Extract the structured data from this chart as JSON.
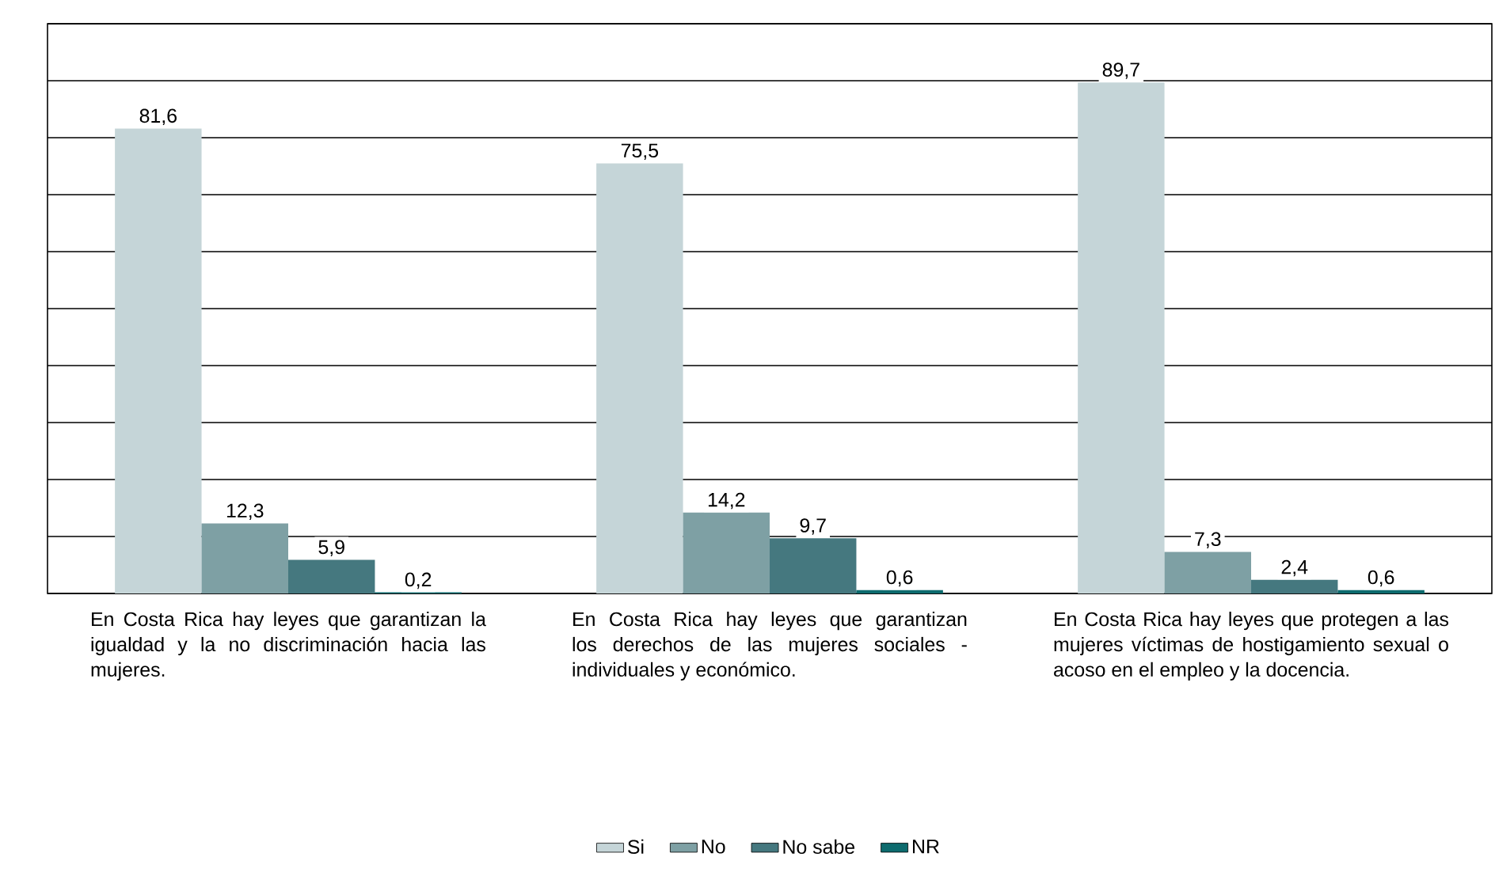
{
  "chart_data": {
    "type": "bar",
    "categories": [
      "En Costa Rica hay leyes que garantizan la igualdad y la no discriminación hacia las mujeres.",
      "En Costa Rica hay leyes que garantizan los derechos de las mujeres sociales -individuales y económico.",
      "En Costa Rica hay leyes que protegen a las mujeres víctimas de hostigamiento sexual o acoso en el empleo y la docencia."
    ],
    "series": [
      {
        "name": "Si",
        "color": "#c5d5d8",
        "values": [
          81.6,
          75.5,
          89.7
        ],
        "value_labels": [
          "81,6",
          "75,5",
          "89,7"
        ]
      },
      {
        "name": "No",
        "color": "#7ea0a4",
        "values": [
          12.3,
          14.2,
          7.3
        ],
        "value_labels": [
          "12,3",
          "14,2",
          "7,3"
        ]
      },
      {
        "name": "No sabe",
        "color": "#45787f",
        "values": [
          5.9,
          9.7,
          2.4
        ],
        "value_labels": [
          "5,9",
          "9,7",
          "2,4"
        ]
      },
      {
        "name": "NR",
        "color": "#0d6b6e",
        "values": [
          0.2,
          0.6,
          0.6
        ],
        "value_labels": [
          "0,2",
          "0,6",
          "0,6"
        ]
      }
    ],
    "ylim": [
      0,
      100
    ],
    "yticks": [
      {
        "value": 0,
        "label": null
      },
      {
        "value": 10,
        "label": null
      },
      {
        "value": 20,
        "label": null
      },
      {
        "value": 30,
        "label": null
      },
      {
        "value": 40,
        "label": null
      },
      {
        "value": 50,
        "label": null
      },
      {
        "value": 60,
        "label": null
      },
      {
        "value": 70,
        "label": null
      },
      {
        "value": 80,
        "label": null
      },
      {
        "value": 90,
        "label": null
      },
      {
        "value": 100,
        "label": null
      }
    ],
    "tick_labels": "x",
    "grid": "y",
    "legend": "bottom"
  }
}
